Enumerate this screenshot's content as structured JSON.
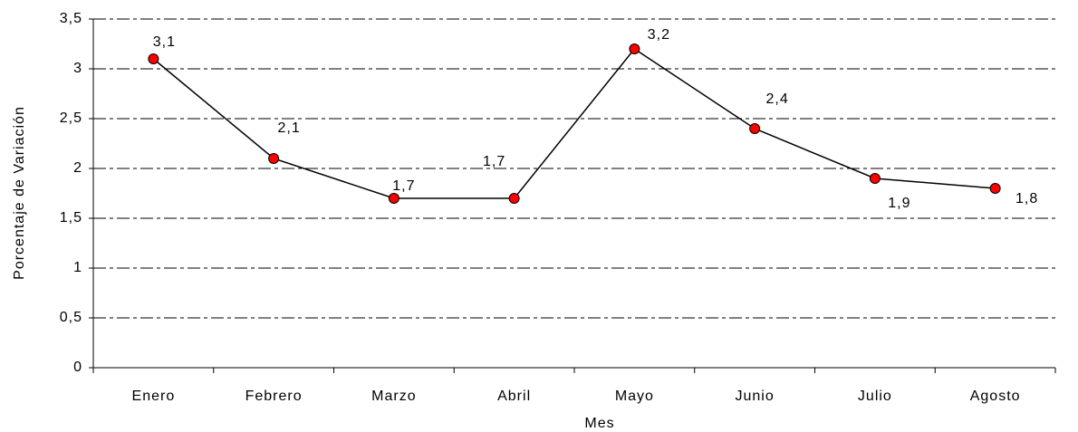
{
  "chart_data": {
    "type": "line",
    "x_label": "Mes",
    "y_label": "Porcentaje de Variación",
    "categories": [
      "Enero",
      "Febrero",
      "Marzo",
      "Abril",
      "Mayo",
      "Junio",
      "Julio",
      "Agosto"
    ],
    "series": [
      {
        "color": "#ff0000",
        "line_color": "#000000",
        "values": [
          3.1,
          2.1,
          1.7,
          1.7,
          3.2,
          2.4,
          1.9,
          1.8
        ],
        "value_labels": [
          "3,1",
          "2,1",
          "1,7",
          "1,7",
          "3,2",
          "2,4",
          "1,9",
          "1,8"
        ]
      }
    ],
    "ylim": [
      0,
      3.5
    ],
    "yticks": [
      0,
      {
        "value": 0.5,
        "label": "0,5"
      },
      1,
      {
        "value": 1.5,
        "label": "1,5"
      },
      2,
      {
        "value": 2.5,
        "label": "2,5"
      },
      3,
      {
        "value": 3.5,
        "label": "3,5"
      }
    ],
    "grid": true
  }
}
